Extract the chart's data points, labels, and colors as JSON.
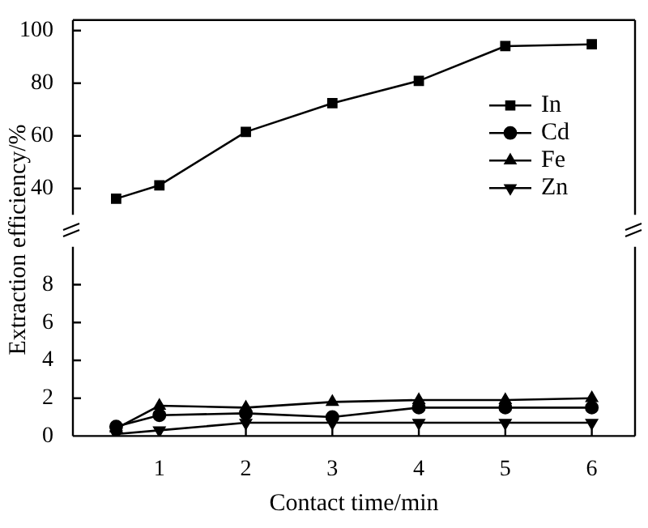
{
  "chart_data": [
    {
      "type": "line",
      "ylabel": "Extraction efficiency/%",
      "x": [
        0.5,
        1,
        2,
        3,
        4,
        5,
        6
      ],
      "xlim": [
        0,
        6.5
      ],
      "xticks": [
        1,
        2,
        3,
        4,
        5,
        6
      ],
      "ylim": [
        30,
        104
      ],
      "yticks": [
        40,
        60,
        80,
        100
      ],
      "tick_labels": "y",
      "legend": "bottom right",
      "grid": false,
      "series": [
        {
          "name": "In",
          "color": "#000000",
          "marker": "square",
          "values": [
            36.1,
            41.2,
            61.5,
            72.4,
            80.9,
            94.1,
            94.8
          ]
        },
        {
          "name": "Cd",
          "color": "#000000",
          "marker": "circle",
          "values": [
            null,
            null,
            null,
            null,
            null,
            null,
            null
          ]
        },
        {
          "name": "Fe",
          "color": "#000000",
          "marker": "triangle",
          "values": [
            null,
            null,
            null,
            null,
            null,
            null,
            null
          ]
        },
        {
          "name": "Zn",
          "color": "#000000",
          "marker": "triangle-down",
          "values": [
            null,
            null,
            null,
            null,
            null,
            null,
            null
          ]
        }
      ]
    },
    {
      "type": "line",
      "xlabel": "Contact time/min",
      "x": [
        0.5,
        1,
        2,
        3,
        4,
        5,
        6
      ],
      "xlim": [
        0,
        6.5
      ],
      "xticks": [
        1,
        2,
        3,
        4,
        5,
        6
      ],
      "ylim": [
        0,
        10
      ],
      "yticks": [
        0,
        2,
        4,
        6,
        8
      ],
      "grid": false,
      "series": [
        {
          "color": "#000000",
          "marker": "circle",
          "values": [
            0.5,
            1.1,
            1.2,
            1.0,
            1.5,
            1.5,
            1.5
          ]
        },
        {
          "color": "#000000",
          "marker": "triangle",
          "values": [
            0.4,
            1.6,
            1.5,
            1.8,
            1.9,
            1.9,
            2.0
          ]
        },
        {
          "color": "#000000",
          "marker": "triangle-down",
          "values": [
            0.1,
            0.3,
            0.7,
            0.7,
            0.7,
            0.7,
            0.7
          ]
        }
      ]
    }
  ]
}
